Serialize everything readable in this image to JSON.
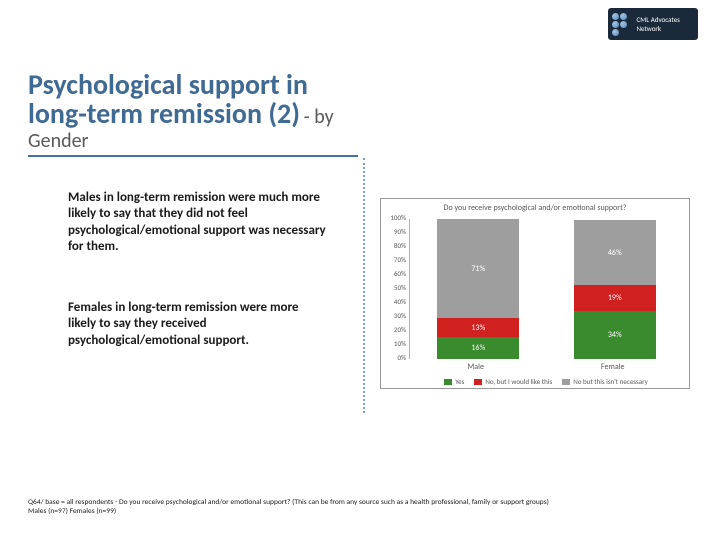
{
  "logo_text": "CML Advocates Network",
  "title_bold": "Psychological support in long-term remission (2)",
  "title_light": " - by Gender",
  "paragraph1": "Males in long-term remission were much more likely to say that they did not feel psychological/emotional support was necessary for them.",
  "paragraph2": "Females in long-term remission were more likely to say they received psychological/emotional support.",
  "chart": {
    "title": "Do you receive psychological and/or emotional support?",
    "y_ticks": [
      "0%",
      "10%",
      "20%",
      "30%",
      "40%",
      "50%",
      "60%",
      "70%",
      "80%",
      "90%",
      "100%"
    ],
    "categories": [
      "Male",
      "Female"
    ],
    "series": [
      {
        "label": "Yes",
        "color": "#3a8a2e"
      },
      {
        "label": "No, but I would like this",
        "color": "#d02020"
      },
      {
        "label": "No but this isn't necessary",
        "color": "#9e9e9e"
      }
    ],
    "bars": [
      {
        "segments": [
          {
            "value": 16,
            "label": "16%",
            "color": "#3a8a2e"
          },
          {
            "value": 13,
            "label": "13%",
            "color": "#d02020"
          },
          {
            "value": 71,
            "label": "71%",
            "color": "#9e9e9e"
          }
        ]
      },
      {
        "segments": [
          {
            "value": 34,
            "label": "34%",
            "color": "#3a8a2e"
          },
          {
            "value": 19,
            "label": "19%",
            "color": "#d02020"
          },
          {
            "value": 46,
            "label": "46%",
            "color": "#9e9e9e"
          }
        ]
      }
    ]
  },
  "footnote_line1": "Q64/ base = all respondents - Do you receive psychological and/or emotional support? (This can be from any source such as a health professional, family or support groups)",
  "footnote_line2": "Males (n=97) Females (n=99)"
}
